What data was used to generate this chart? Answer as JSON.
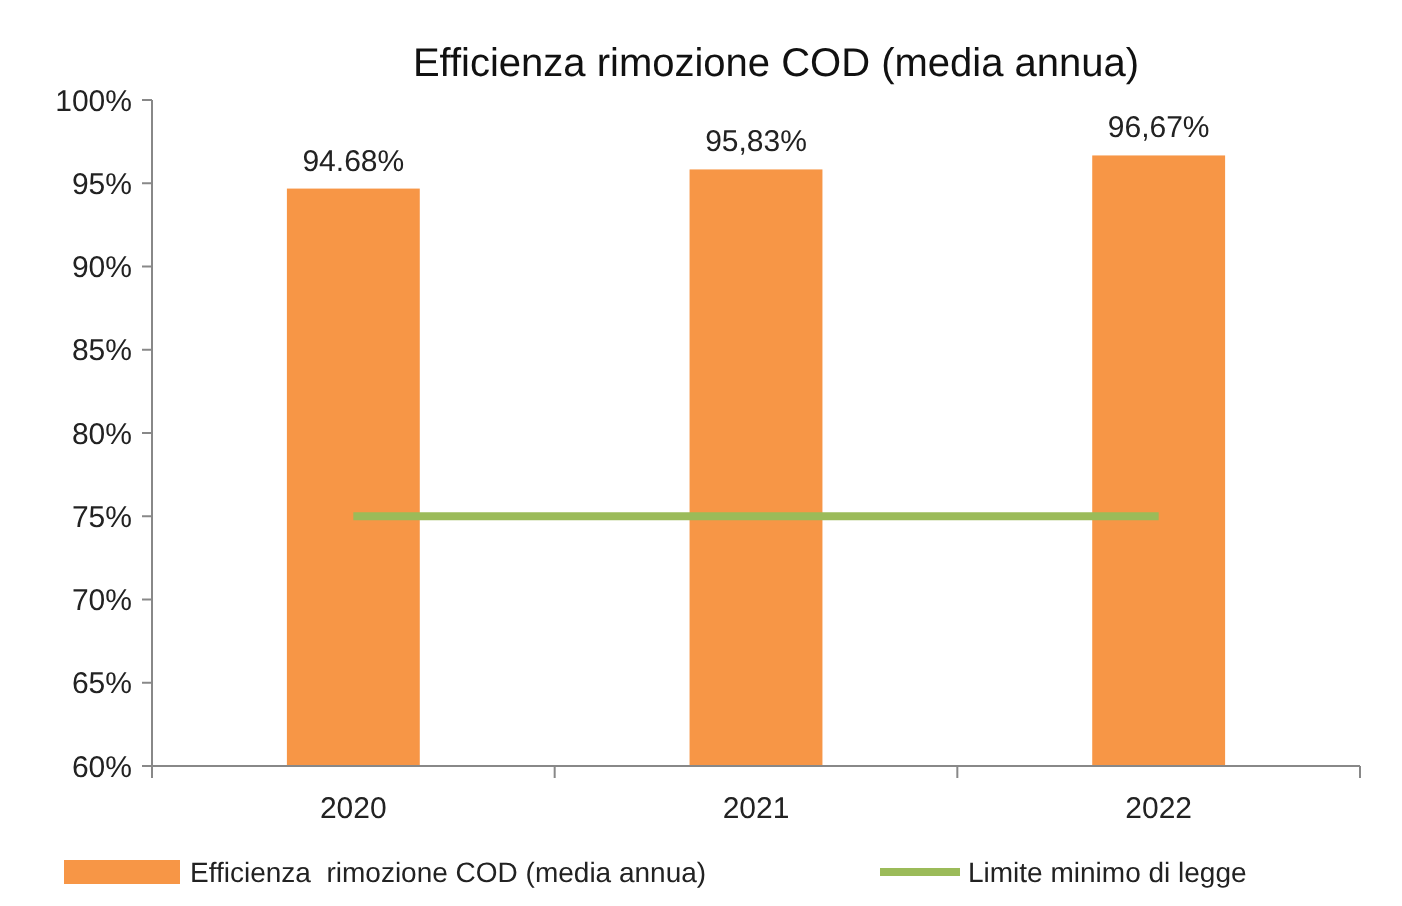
{
  "chart_data": {
    "type": "bar",
    "title": "Efficienza rimozione COD (media annua)",
    "categories": [
      "2020",
      "2021",
      "2022"
    ],
    "ylim": [
      60,
      100
    ],
    "yticks": [
      {
        "value": 60,
        "label": "60%"
      },
      {
        "value": 65,
        "label": "65%"
      },
      {
        "value": 70,
        "label": "70%"
      },
      {
        "value": 75,
        "label": "75%"
      },
      {
        "value": 80,
        "label": "80%"
      },
      {
        "value": 85,
        "label": "85%"
      },
      {
        "value": 90,
        "label": "90%"
      },
      {
        "value": 95,
        "label": "95%"
      },
      {
        "value": 100,
        "label": "100%"
      }
    ],
    "legend": "bottom",
    "series": [
      {
        "name": "Efficienza  rimozione COD (media annua)",
        "color": "#f79646",
        "values": [
          94.68,
          95.83,
          96.67
        ],
        "value_labels": [
          "94.68%",
          "95,83%",
          "96,67%"
        ]
      },
      {
        "name": "Limite minimo di legge",
        "type": "line",
        "color": "#9bbb59",
        "values": [
          75,
          75,
          75
        ]
      }
    ]
  }
}
